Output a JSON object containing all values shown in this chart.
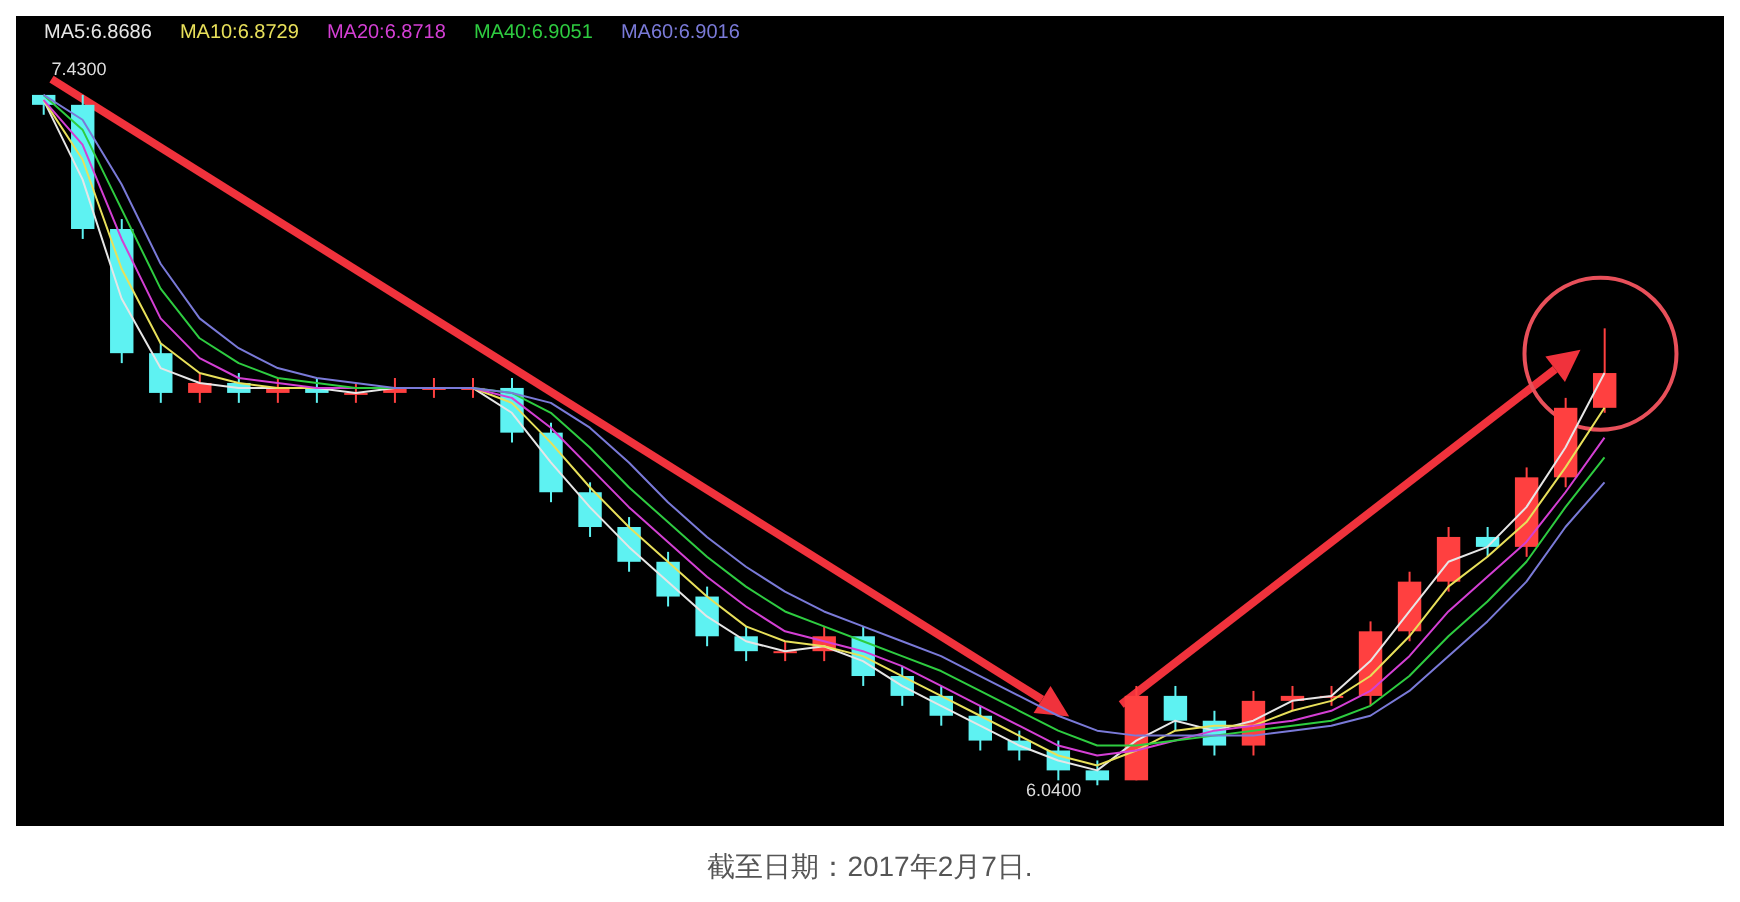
{
  "chart_data": {
    "type": "candlestick",
    "categories": [
      null,
      null,
      null,
      null,
      null,
      null,
      null,
      null,
      null,
      null,
      null,
      null,
      null,
      null,
      null,
      null,
      null,
      null,
      null,
      null,
      null,
      null,
      null,
      null,
      null,
      null,
      null,
      null,
      null,
      null,
      null,
      null,
      null,
      null,
      null,
      null,
      null,
      null,
      null,
      null,
      null
    ],
    "ohlc": [
      [
        7.43,
        7.43,
        7.39,
        7.41
      ],
      [
        7.41,
        7.43,
        7.14,
        7.16
      ],
      [
        7.16,
        7.18,
        6.89,
        6.91
      ],
      [
        6.91,
        6.93,
        6.81,
        6.83
      ],
      [
        6.83,
        6.87,
        6.81,
        6.85
      ],
      [
        6.85,
        6.87,
        6.81,
        6.83
      ],
      [
        6.83,
        6.86,
        6.81,
        6.84
      ],
      [
        6.84,
        6.86,
        6.81,
        6.83
      ],
      [
        6.83,
        6.85,
        6.81,
        6.83
      ],
      [
        6.83,
        6.86,
        6.81,
        6.84
      ],
      [
        6.84,
        6.86,
        6.82,
        6.84
      ],
      [
        6.84,
        6.86,
        6.82,
        6.84
      ],
      [
        6.84,
        6.86,
        6.73,
        6.75
      ],
      [
        6.75,
        6.77,
        6.61,
        6.63
      ],
      [
        6.63,
        6.65,
        6.54,
        6.56
      ],
      [
        6.56,
        6.58,
        6.47,
        6.49
      ],
      [
        6.49,
        6.51,
        6.4,
        6.42
      ],
      [
        6.42,
        6.44,
        6.32,
        6.34
      ],
      [
        6.34,
        6.36,
        6.29,
        6.31
      ],
      [
        6.31,
        6.33,
        6.29,
        6.31
      ],
      [
        6.31,
        6.36,
        6.29,
        6.34
      ],
      [
        6.34,
        6.36,
        6.24,
        6.26
      ],
      [
        6.26,
        6.28,
        6.2,
        6.22
      ],
      [
        6.22,
        6.24,
        6.16,
        6.18
      ],
      [
        6.18,
        6.2,
        6.11,
        6.13
      ],
      [
        6.13,
        6.15,
        6.09,
        6.11
      ],
      [
        6.11,
        6.13,
        6.05,
        6.07
      ],
      [
        6.07,
        6.09,
        6.04,
        6.05
      ],
      [
        6.05,
        6.24,
        6.05,
        6.22
      ],
      [
        6.22,
        6.24,
        6.15,
        6.17
      ],
      [
        6.17,
        6.19,
        6.1,
        6.12
      ],
      [
        6.12,
        6.23,
        6.1,
        6.21
      ],
      [
        6.21,
        6.24,
        6.19,
        6.22
      ],
      [
        6.22,
        6.24,
        6.2,
        6.22
      ],
      [
        6.22,
        6.37,
        6.2,
        6.35
      ],
      [
        6.35,
        6.47,
        6.33,
        6.45
      ],
      [
        6.45,
        6.56,
        6.43,
        6.54
      ],
      [
        6.54,
        6.56,
        6.5,
        6.52
      ],
      [
        6.52,
        6.68,
        6.5,
        6.66
      ],
      [
        6.66,
        6.82,
        6.64,
        6.8
      ],
      [
        6.8,
        6.96,
        6.79,
        6.87
      ]
    ],
    "series": [
      {
        "name": "MA5:6.8686",
        "type": "line",
        "color": "#e6e6e6",
        "values": [
          7.42,
          7.26,
          7.02,
          6.88,
          6.85,
          6.84,
          6.84,
          6.84,
          6.83,
          6.84,
          6.84,
          6.84,
          6.79,
          6.69,
          6.6,
          6.52,
          6.45,
          6.38,
          6.33,
          6.31,
          6.32,
          6.29,
          6.24,
          6.2,
          6.16,
          6.12,
          6.09,
          6.07,
          6.13,
          6.17,
          6.15,
          6.17,
          6.21,
          6.22,
          6.29,
          6.39,
          6.49,
          6.52,
          6.6,
          6.72,
          6.87
        ]
      },
      {
        "name": "MA10:6.8729",
        "type": "line",
        "color": "#e8e05a",
        "values": [
          7.42,
          7.3,
          7.08,
          6.93,
          6.87,
          6.85,
          6.84,
          6.84,
          6.84,
          6.84,
          6.84,
          6.84,
          6.81,
          6.73,
          6.64,
          6.56,
          6.49,
          6.42,
          6.36,
          6.33,
          6.32,
          6.3,
          6.26,
          6.22,
          6.18,
          6.14,
          6.1,
          6.08,
          6.11,
          6.15,
          6.16,
          6.16,
          6.19,
          6.21,
          6.26,
          6.34,
          6.44,
          6.5,
          6.57,
          6.68,
          6.8
        ]
      },
      {
        "name": "MA20:6.8718",
        "type": "line",
        "color": "#d43fd4",
        "values": [
          7.42,
          7.33,
          7.14,
          6.98,
          6.9,
          6.86,
          6.85,
          6.84,
          6.84,
          6.84,
          6.84,
          6.84,
          6.82,
          6.76,
          6.68,
          6.6,
          6.53,
          6.46,
          6.4,
          6.35,
          6.33,
          6.31,
          6.28,
          6.24,
          6.2,
          6.16,
          6.12,
          6.1,
          6.11,
          6.13,
          6.15,
          6.16,
          6.17,
          6.19,
          6.23,
          6.3,
          6.39,
          6.46,
          6.53,
          6.63,
          6.74
        ]
      },
      {
        "name": "MA40:6.9051",
        "type": "line",
        "color": "#2ecc40",
        "values": [
          7.43,
          7.36,
          7.2,
          7.04,
          6.94,
          6.89,
          6.86,
          6.85,
          6.84,
          6.84,
          6.84,
          6.84,
          6.83,
          6.79,
          6.72,
          6.64,
          6.57,
          6.5,
          6.44,
          6.39,
          6.36,
          6.33,
          6.3,
          6.27,
          6.23,
          6.19,
          6.15,
          6.12,
          6.12,
          6.13,
          6.14,
          6.15,
          6.16,
          6.17,
          6.2,
          6.26,
          6.34,
          6.41,
          6.49,
          6.6,
          6.7
        ]
      },
      {
        "name": "MA60:6.9016",
        "type": "line",
        "color": "#7a7ad8",
        "values": [
          7.43,
          7.38,
          7.25,
          7.09,
          6.98,
          6.92,
          6.88,
          6.86,
          6.85,
          6.84,
          6.84,
          6.84,
          6.83,
          6.81,
          6.76,
          6.69,
          6.61,
          6.54,
          6.48,
          6.43,
          6.39,
          6.36,
          6.33,
          6.3,
          6.26,
          6.22,
          6.18,
          6.15,
          6.14,
          6.14,
          6.14,
          6.14,
          6.15,
          6.16,
          6.18,
          6.23,
          6.3,
          6.37,
          6.45,
          6.56,
          6.65
        ]
      }
    ],
    "legend": "top left",
    "marker": "none",
    "annotations": [
      {
        "text": "7.4300",
        "y": 7.43
      },
      {
        "text": "6.0400",
        "y": 6.04
      },
      "截至日期：2017年2月7日."
    ]
  }
}
